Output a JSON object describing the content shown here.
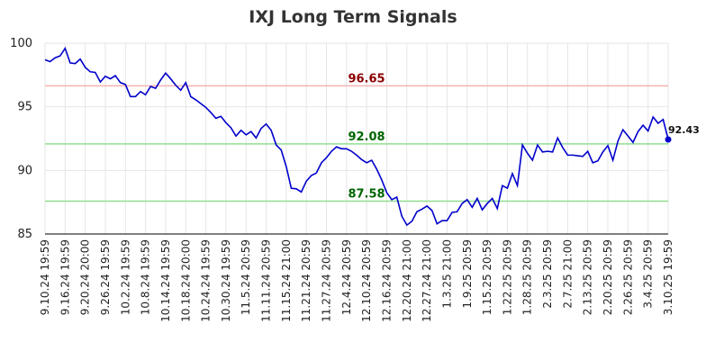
{
  "chart_data": {
    "type": "line",
    "title": "IXJ Long Term Signals",
    "categories": [
      "9.10.24 19:59",
      null,
      null,
      null,
      "9.16.24 19:59",
      null,
      null,
      null,
      "9.20.24 20:00",
      null,
      null,
      null,
      "9.26.24 19:59",
      null,
      null,
      null,
      "10.2.24 19:59",
      null,
      null,
      null,
      "10.8.24 19:59",
      null,
      null,
      null,
      "10.14.24 19:59",
      null,
      null,
      null,
      "10.18.24 20:00",
      null,
      null,
      null,
      "10.24.24 19:59",
      null,
      null,
      null,
      "10.30.24 19:59",
      null,
      null,
      null,
      "11.5.24 20:59",
      null,
      null,
      null,
      "11.11.24 20:59",
      null,
      null,
      null,
      "11.15.24 21:00",
      null,
      null,
      null,
      "11.21.24 20:59",
      null,
      null,
      null,
      "11.27.24 20:59",
      null,
      null,
      null,
      "12.4.24 20:59",
      null,
      null,
      null,
      "12.10.24 20:59",
      null,
      null,
      null,
      "12.16.24 20:59",
      null,
      null,
      null,
      "12.20.24 21:00",
      null,
      null,
      null,
      "12.27.24 21:00",
      null,
      null,
      null,
      "1.3.25 21:00",
      null,
      null,
      null,
      "1.9.25 20:59",
      null,
      null,
      null,
      "1.15.25 20:59",
      null,
      null,
      null,
      "1.22.25 20:59",
      null,
      null,
      null,
      "1.28.25 20:59",
      null,
      null,
      null,
      "2.3.25 20:59",
      null,
      null,
      null,
      "2.7.25 21:00",
      null,
      null,
      null,
      "2.13.25 20:59",
      null,
      null,
      null,
      "2.20.25 20:59",
      null,
      null,
      null,
      "2.26.25 20:59",
      null,
      null,
      null,
      "3.4.25 20:59",
      null,
      null,
      null,
      "3.10.25 19:59"
    ],
    "values": [
      98.7,
      98.55,
      98.85,
      99.0,
      99.6,
      98.45,
      98.4,
      98.75,
      98.1,
      97.75,
      97.7,
      96.95,
      97.4,
      97.2,
      97.45,
      96.9,
      96.75,
      95.8,
      95.8,
      96.2,
      95.95,
      96.6,
      96.45,
      97.1,
      97.65,
      97.2,
      96.7,
      96.3,
      96.9,
      95.8,
      95.55,
      95.25,
      94.95,
      94.55,
      94.1,
      94.25,
      93.75,
      93.35,
      92.7,
      93.15,
      92.8,
      93.05,
      92.55,
      93.3,
      93.65,
      93.15,
      92.0,
      91.6,
      90.3,
      88.6,
      88.55,
      88.3,
      89.15,
      89.6,
      89.8,
      90.6,
      91.0,
      91.5,
      91.85,
      91.7,
      91.7,
      91.5,
      91.2,
      90.85,
      90.6,
      90.8,
      90.1,
      89.25,
      88.25,
      87.7,
      87.9,
      86.4,
      85.7,
      86.0,
      86.75,
      86.95,
      87.2,
      86.85,
      85.8,
      86.05,
      86.05,
      86.7,
      86.75,
      87.4,
      87.7,
      87.1,
      87.8,
      86.9,
      87.4,
      87.8,
      87.0,
      88.8,
      88.6,
      89.75,
      88.8,
      92.0,
      91.35,
      90.8,
      92.0,
      91.45,
      91.5,
      91.45,
      92.55,
      91.8,
      91.2,
      91.2,
      91.15,
      91.1,
      91.5,
      90.6,
      90.75,
      91.45,
      91.95,
      90.8,
      92.3,
      93.2,
      92.7,
      92.2,
      93.05,
      93.55,
      93.1,
      94.2,
      93.7,
      94.0,
      92.43
    ],
    "color": "#0000cc",
    "signal_lines": [
      {
        "value": 96.65,
        "color": "#f6b4b4",
        "label_color": "#8b0000"
      },
      {
        "value": 92.08,
        "color": "#8fdf8f",
        "label_color": "#006400"
      },
      {
        "value": 87.58,
        "color": "#8fdf8f",
        "label_color": "#006400"
      }
    ],
    "ylim": [
      85,
      100
    ],
    "yticks": [
      85,
      90,
      95,
      100
    ],
    "grid": true
  }
}
